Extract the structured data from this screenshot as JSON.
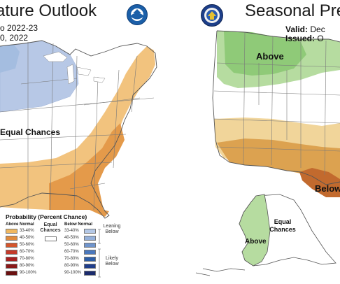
{
  "left": {
    "title": "rature Outlook",
    "subtitle_line1": "o 2022-23",
    "subtitle_line2": "0, 2022",
    "equal_chances": "Equal Chances",
    "logo_icon": "noaa-logo-icon"
  },
  "right": {
    "title": "Seasonal Pre",
    "valid_label": "Valid:",
    "valid_value": "Dec",
    "issued_label": "Issued:",
    "issued_value": "O",
    "above_label": "Above",
    "below_label": "Below",
    "alaska_equal_chances": "Equal Chances",
    "alaska_above": "Above",
    "logo_icon": "doc-seal-icon"
  },
  "legend": {
    "title": "Probability (Percent Chance)",
    "above_header": "Above Normal",
    "below_header": "Below Normal",
    "equal_chances": "Equal Chances",
    "leaning_below": "Leaning Below",
    "likely_below": "Likely Below",
    "above_rows": [
      {
        "label": "33-40%",
        "color": "#f0b860"
      },
      {
        "label": "40-50%",
        "color": "#e08a3c"
      },
      {
        "label": "50-60%",
        "color": "#d4552c"
      },
      {
        "label": "60-70%",
        "color": "#c43a2a"
      },
      {
        "label": "70-80%",
        "color": "#a82020"
      },
      {
        "label": "80-90%",
        "color": "#8a1818"
      },
      {
        "label": "90-100%",
        "color": "#6a1010"
      }
    ],
    "below_rows": [
      {
        "label": "33-40%",
        "color": "#b4c8e6"
      },
      {
        "label": "40-50%",
        "color": "#94b0da"
      },
      {
        "label": "50-60%",
        "color": "#6f94cc"
      },
      {
        "label": "60-70%",
        "color": "#4a78bd"
      },
      {
        "label": "70-80%",
        "color": "#2d5ea8"
      },
      {
        "label": "80-90%",
        "color": "#203e8c"
      },
      {
        "label": "90-100%",
        "color": "#1a2a6c"
      }
    ]
  },
  "colors": {
    "temp_above_light": "#f2c37e",
    "temp_above_mid": "#e49a4a",
    "temp_below_light": "#b7c8e6",
    "precip_above_light": "#b6dca0",
    "precip_above_mid": "#8fca78",
    "precip_below_light": "#f1d59a",
    "precip_below_mid": "#dca250",
    "precip_below_dark": "#c26a2e"
  }
}
